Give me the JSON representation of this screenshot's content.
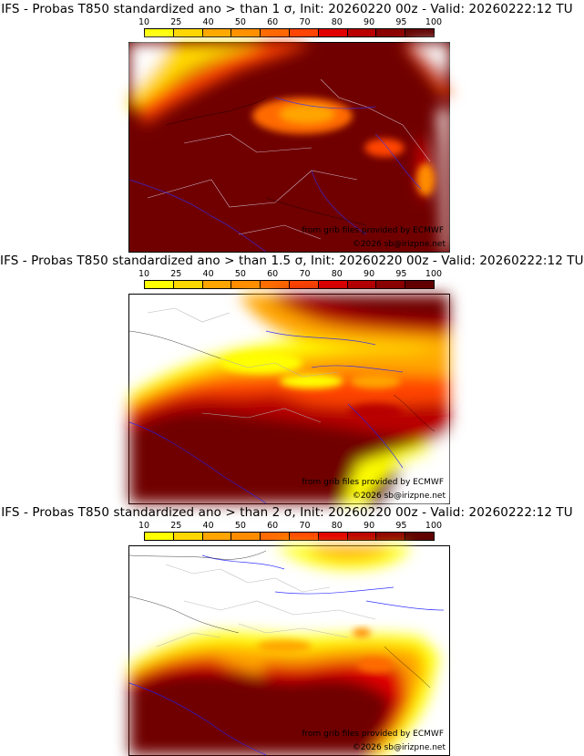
{
  "palette": [
    "#ffff00",
    "#ffd700",
    "#ffa500",
    "#ff8c00",
    "#ff6a00",
    "#ff4500",
    "#e00000",
    "#b80000",
    "#8b0000",
    "#600000"
  ],
  "colorbar_ticks": [
    "10",
    "25",
    "40",
    "50",
    "60",
    "70",
    "80",
    "90",
    "95",
    "100"
  ],
  "map_colors": {
    "land_fill": "#ffffff",
    "high_prob": "#700000",
    "borders": "#ffffff",
    "coast": "#1a1aff",
    "rivers": "#3030ff"
  },
  "panels": [
    {
      "title": "IFS - Probas T850  standardized ano > than 1 σ, Init: 20260220 00z - Valid: 20260222:12 TU",
      "credit_source": "from grib files provided by ECMWF",
      "credit_copyright": "©2026 sb@irizpne.net"
    },
    {
      "title": "IFS - Probas T850  standardized ano > than 1.5 σ, Init: 20260220 00z - Valid: 20260222:12 TU",
      "credit_source": "from grib files provided by ECMWF",
      "credit_copyright": "©2026 sb@irizpne.net"
    },
    {
      "title": "IFS - Probas T850  standardized ano > than 2 σ, Init: 20260220 00z - Valid: 20260222:12 TU",
      "credit_source": "from grib files provided by ECMWF",
      "credit_copyright": "©2026 sb@irizpne.net"
    }
  ]
}
